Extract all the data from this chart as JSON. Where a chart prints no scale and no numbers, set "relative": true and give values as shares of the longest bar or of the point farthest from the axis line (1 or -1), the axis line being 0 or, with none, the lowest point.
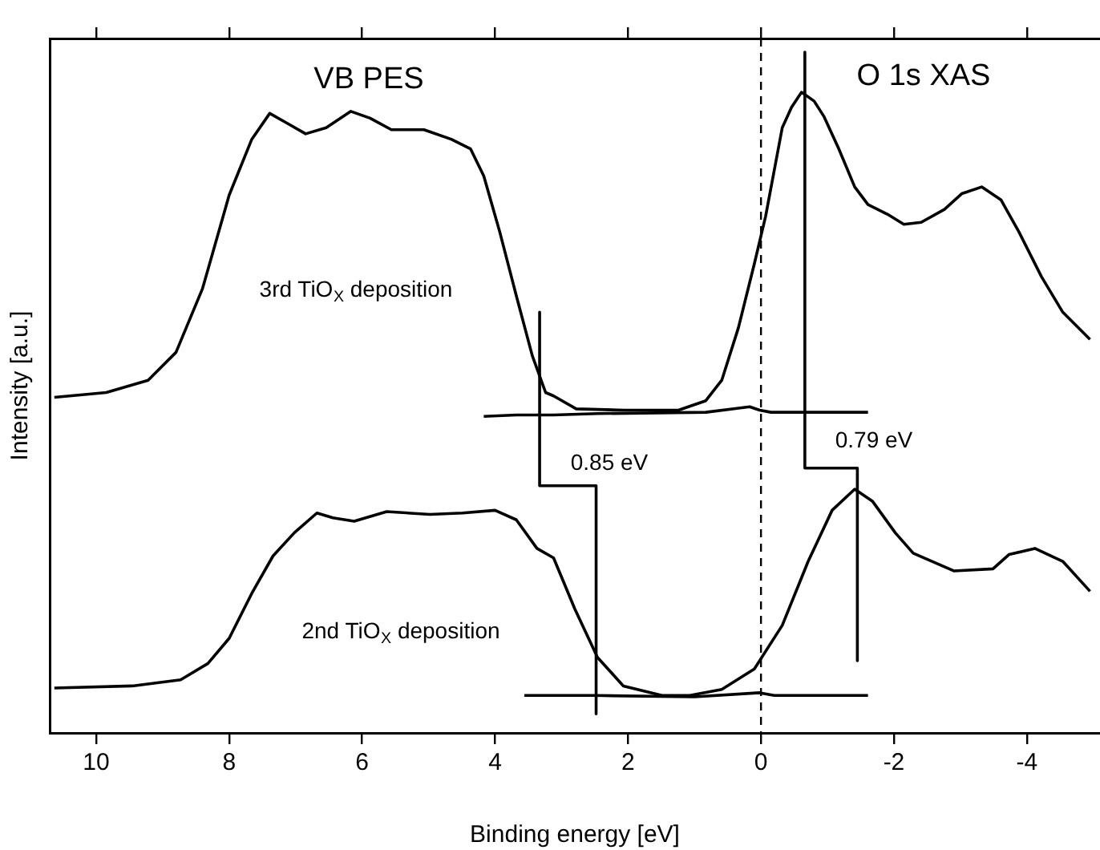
{
  "chart_data": {
    "type": "line",
    "relative": true,
    "xlabel": "Binding energy [eV]",
    "ylabel": "Intensity [a.u.]",
    "xlim": [
      10.7,
      -5.1
    ],
    "xticks": [
      10,
      8,
      6,
      4,
      2,
      0,
      -2,
      -4
    ],
    "tick_labels": "x",
    "grid": false,
    "legend": false,
    "marker": "none",
    "line_style": "solid",
    "series": [
      {
        "color": "#000000",
        "x": [
          10.63,
          9.85,
          9.22,
          8.8,
          8.4,
          8.0,
          7.66,
          7.39,
          7.1,
          6.85,
          6.54,
          6.17,
          5.88,
          5.56,
          5.07,
          4.66,
          4.37,
          4.17,
          3.93,
          3.68,
          3.44,
          3.24,
          3.12,
          2.78,
          2.05,
          1.24,
          0.83,
          0.59,
          0.34,
          0.1,
          -0.07,
          -0.32,
          -0.46,
          -0.61,
          -0.8,
          -0.95,
          -1.17,
          -1.41,
          -1.61,
          -1.9,
          -2.15,
          -2.41,
          -2.76,
          -3.02,
          -3.32,
          -3.61,
          -3.88,
          -4.22,
          -4.54,
          -4.95
        ],
        "values": [
          0.493,
          0.5,
          0.518,
          0.559,
          0.653,
          0.79,
          0.872,
          0.91,
          0.894,
          0.88,
          0.889,
          0.913,
          0.903,
          0.886,
          0.886,
          0.872,
          0.858,
          0.818,
          0.736,
          0.642,
          0.554,
          0.5,
          0.495,
          0.476,
          0.474,
          0.474,
          0.488,
          0.518,
          0.595,
          0.689,
          0.759,
          0.889,
          0.919,
          0.941,
          0.928,
          0.905,
          0.858,
          0.802,
          0.776,
          0.762,
          0.747,
          0.75,
          0.769,
          0.792,
          0.802,
          0.783,
          0.736,
          0.67,
          0.618,
          0.578
        ]
      },
      {
        "color": "#000000",
        "x": [
          4.17,
          3.68,
          3.12,
          2.46,
          0.83,
          0.17,
          0.02,
          -0.15,
          -1.61
        ],
        "values": [
          0.465,
          0.467,
          0.467,
          0.469,
          0.471,
          0.479,
          0.474,
          0.471,
          0.471
        ]
      },
      {
        "color": "#000000",
        "x": [
          10.63,
          9.46,
          8.73,
          8.32,
          8.0,
          7.66,
          7.34,
          7.02,
          6.68,
          6.44,
          6.12,
          5.63,
          4.98,
          4.49,
          4.0,
          3.68,
          3.37,
          3.12,
          2.8,
          2.46,
          2.07,
          1.49,
          1.07,
          0.59,
          0.1,
          -0.32,
          -0.71,
          -1.07,
          -1.41,
          -1.68,
          -2.02,
          -2.29,
          -2.9,
          -3.49,
          -3.73,
          -4.12,
          -4.54,
          -4.95
        ],
        "values": [
          0.066,
          0.069,
          0.078,
          0.102,
          0.139,
          0.205,
          0.26,
          0.294,
          0.323,
          0.316,
          0.311,
          0.325,
          0.321,
          0.323,
          0.327,
          0.313,
          0.271,
          0.257,
          0.182,
          0.111,
          0.069,
          0.055,
          0.055,
          0.064,
          0.094,
          0.158,
          0.252,
          0.327,
          0.358,
          0.34,
          0.294,
          0.264,
          0.238,
          0.241,
          0.262,
          0.271,
          0.252,
          0.208
        ]
      },
      {
        "color": "#000000",
        "x": [
          3.56,
          2.5,
          1.0,
          0.02,
          -0.2,
          -1.61
        ],
        "values": [
          0.055,
          0.055,
          0.053,
          0.059,
          0.055,
          0.055
        ]
      },
      {
        "color": "#000000",
        "x": [
          3.33,
          3.33,
          2.48,
          2.48
        ],
        "values": [
          0.618,
          0.363,
          0.363,
          0.028
        ]
      },
      {
        "color": "#000000",
        "x": [
          -0.66,
          -0.66,
          -1.45,
          -1.45
        ],
        "values": [
          1.0,
          0.389,
          0.389,
          0.106
        ]
      }
    ],
    "ref_lines": [
      {
        "axis": "x",
        "value": 0,
        "line_style": "dashed",
        "color": "#000000"
      }
    ],
    "annotations": [
      "VB PES",
      "O 1s XAS",
      "3rd TiO$_{X}$ deposition",
      "2nd TiO$_{X}$ deposition",
      "0.85 eV",
      "0.79 eV"
    ]
  }
}
